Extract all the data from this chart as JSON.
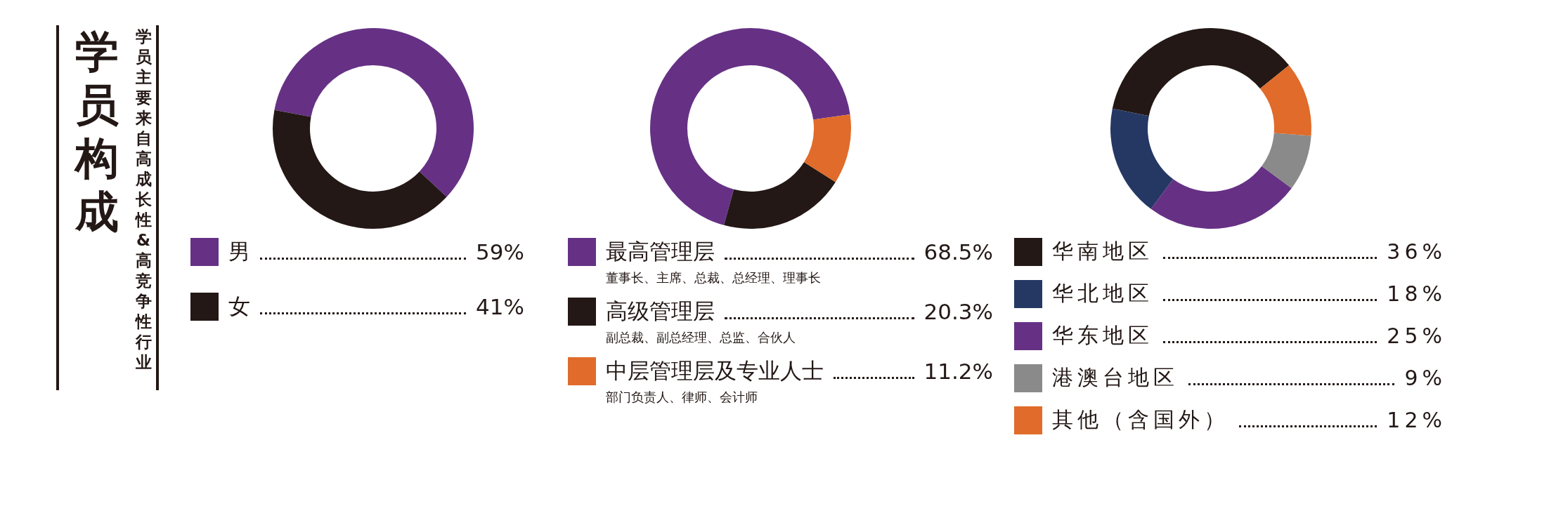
{
  "chart_data": [
    {
      "type": "donut",
      "title": "学员构成",
      "subtitle": "学员主要来自高成长性&高竞争性行业",
      "categories": [
        "男",
        "女"
      ],
      "values": [
        59,
        41
      ],
      "value_labels": [
        "59%",
        "41%"
      ],
      "colors": [
        "#663185",
        "#231815"
      ],
      "legend": "bottom"
    },
    {
      "type": "donut",
      "categories": [
        "最高管理层",
        "高级管理层",
        "中层管理层及专业人士"
      ],
      "values": [
        68.5,
        20.3,
        11.2
      ],
      "value_labels": [
        "68.5%",
        "20.3%",
        "11.2%"
      ],
      "colors": [
        "#663185",
        "#231815",
        "#e06b2a"
      ],
      "legend": "bottom",
      "annotations": [
        "董事长、主席、总裁、总经理、理事长",
        "副总裁、副总经理、总监、合伙人",
        "部门负责人、律师、会计师"
      ]
    },
    {
      "type": "donut",
      "categories": [
        "华南地区",
        "华北地区",
        "华东地区",
        "港澳台地区",
        "其他（含国外）"
      ],
      "values": [
        36,
        18,
        25,
        9,
        12
      ],
      "value_labels": [
        "36%",
        "18%",
        "25%",
        "9%",
        "12%"
      ],
      "colors": [
        "#231815",
        "#253864",
        "#663185",
        "#8a8a8a",
        "#e06b2a"
      ],
      "legend": "bottom"
    }
  ]
}
